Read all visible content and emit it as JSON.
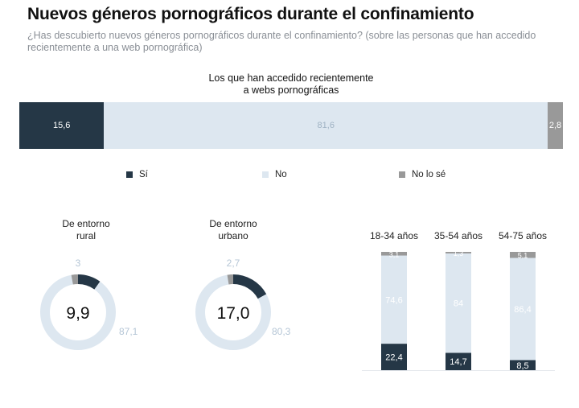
{
  "title": "Nuevos géneros pornográficos durante el confinamiento",
  "subtitle": "¿Has descubierto nuevos géneros pornográficos durante el confinamiento? (sobre las personas que han accedido recientemente a una web pornográfica)",
  "colors": {
    "si": "#253746",
    "no": "#dde7f0",
    "nose": "#999999",
    "donut_track": "#dde7f0",
    "label_light": "#b5c6d6"
  },
  "chart_data": [
    {
      "type": "bar",
      "orientation": "horizontal-stacked",
      "title": "Los que han accedido recientemente a webs pornográficas",
      "title_lines": [
        "Los que han accedido recientemente",
        "a webs pornográficas"
      ],
      "series": [
        {
          "name": "Sí",
          "value": 15.6,
          "label": "15,6"
        },
        {
          "name": "No",
          "value": 81.6,
          "label": "81,6"
        },
        {
          "name": "No lo sé",
          "value": 2.8,
          "label": "2,8"
        }
      ],
      "legend": [
        "Sí",
        "No",
        "No lo sé"
      ]
    },
    {
      "type": "pie",
      "subtype": "donut",
      "title": "De entorno rural",
      "title_lines": [
        "De entorno",
        "rural"
      ],
      "center_label": "9,9",
      "slices": [
        {
          "name": "Sí",
          "value": 9.9,
          "label": "9,9"
        },
        {
          "name": "No",
          "value": 87.1,
          "label": "87,1"
        },
        {
          "name": "No lo sé",
          "value": 3,
          "label": "3"
        }
      ]
    },
    {
      "type": "pie",
      "subtype": "donut",
      "title": "De entorno urbano",
      "title_lines": [
        "De entorno",
        "urbano"
      ],
      "center_label": "17,0",
      "slices": [
        {
          "name": "Sí",
          "value": 17.0,
          "label": "17,0"
        },
        {
          "name": "No",
          "value": 80.3,
          "label": "80,3"
        },
        {
          "name": "No lo sé",
          "value": 2.7,
          "label": "2,7"
        }
      ]
    },
    {
      "type": "bar",
      "orientation": "vertical-stacked",
      "categories": [
        "18-34 años",
        "35-54 años",
        "54-75 años"
      ],
      "series": [
        {
          "name": "Sí",
          "values": [
            22.4,
            14.7,
            8.5
          ],
          "labels": [
            "22,4",
            "14,7",
            "8,5"
          ]
        },
        {
          "name": "No",
          "values": [
            74.6,
            84,
            86.4
          ],
          "labels": [
            "74,6",
            "84",
            "86,4"
          ]
        },
        {
          "name": "No lo sé",
          "values": [
            3.1,
            1.3,
            5.1
          ],
          "labels": [
            "3,1",
            "1,3",
            "5,1"
          ]
        }
      ]
    }
  ]
}
